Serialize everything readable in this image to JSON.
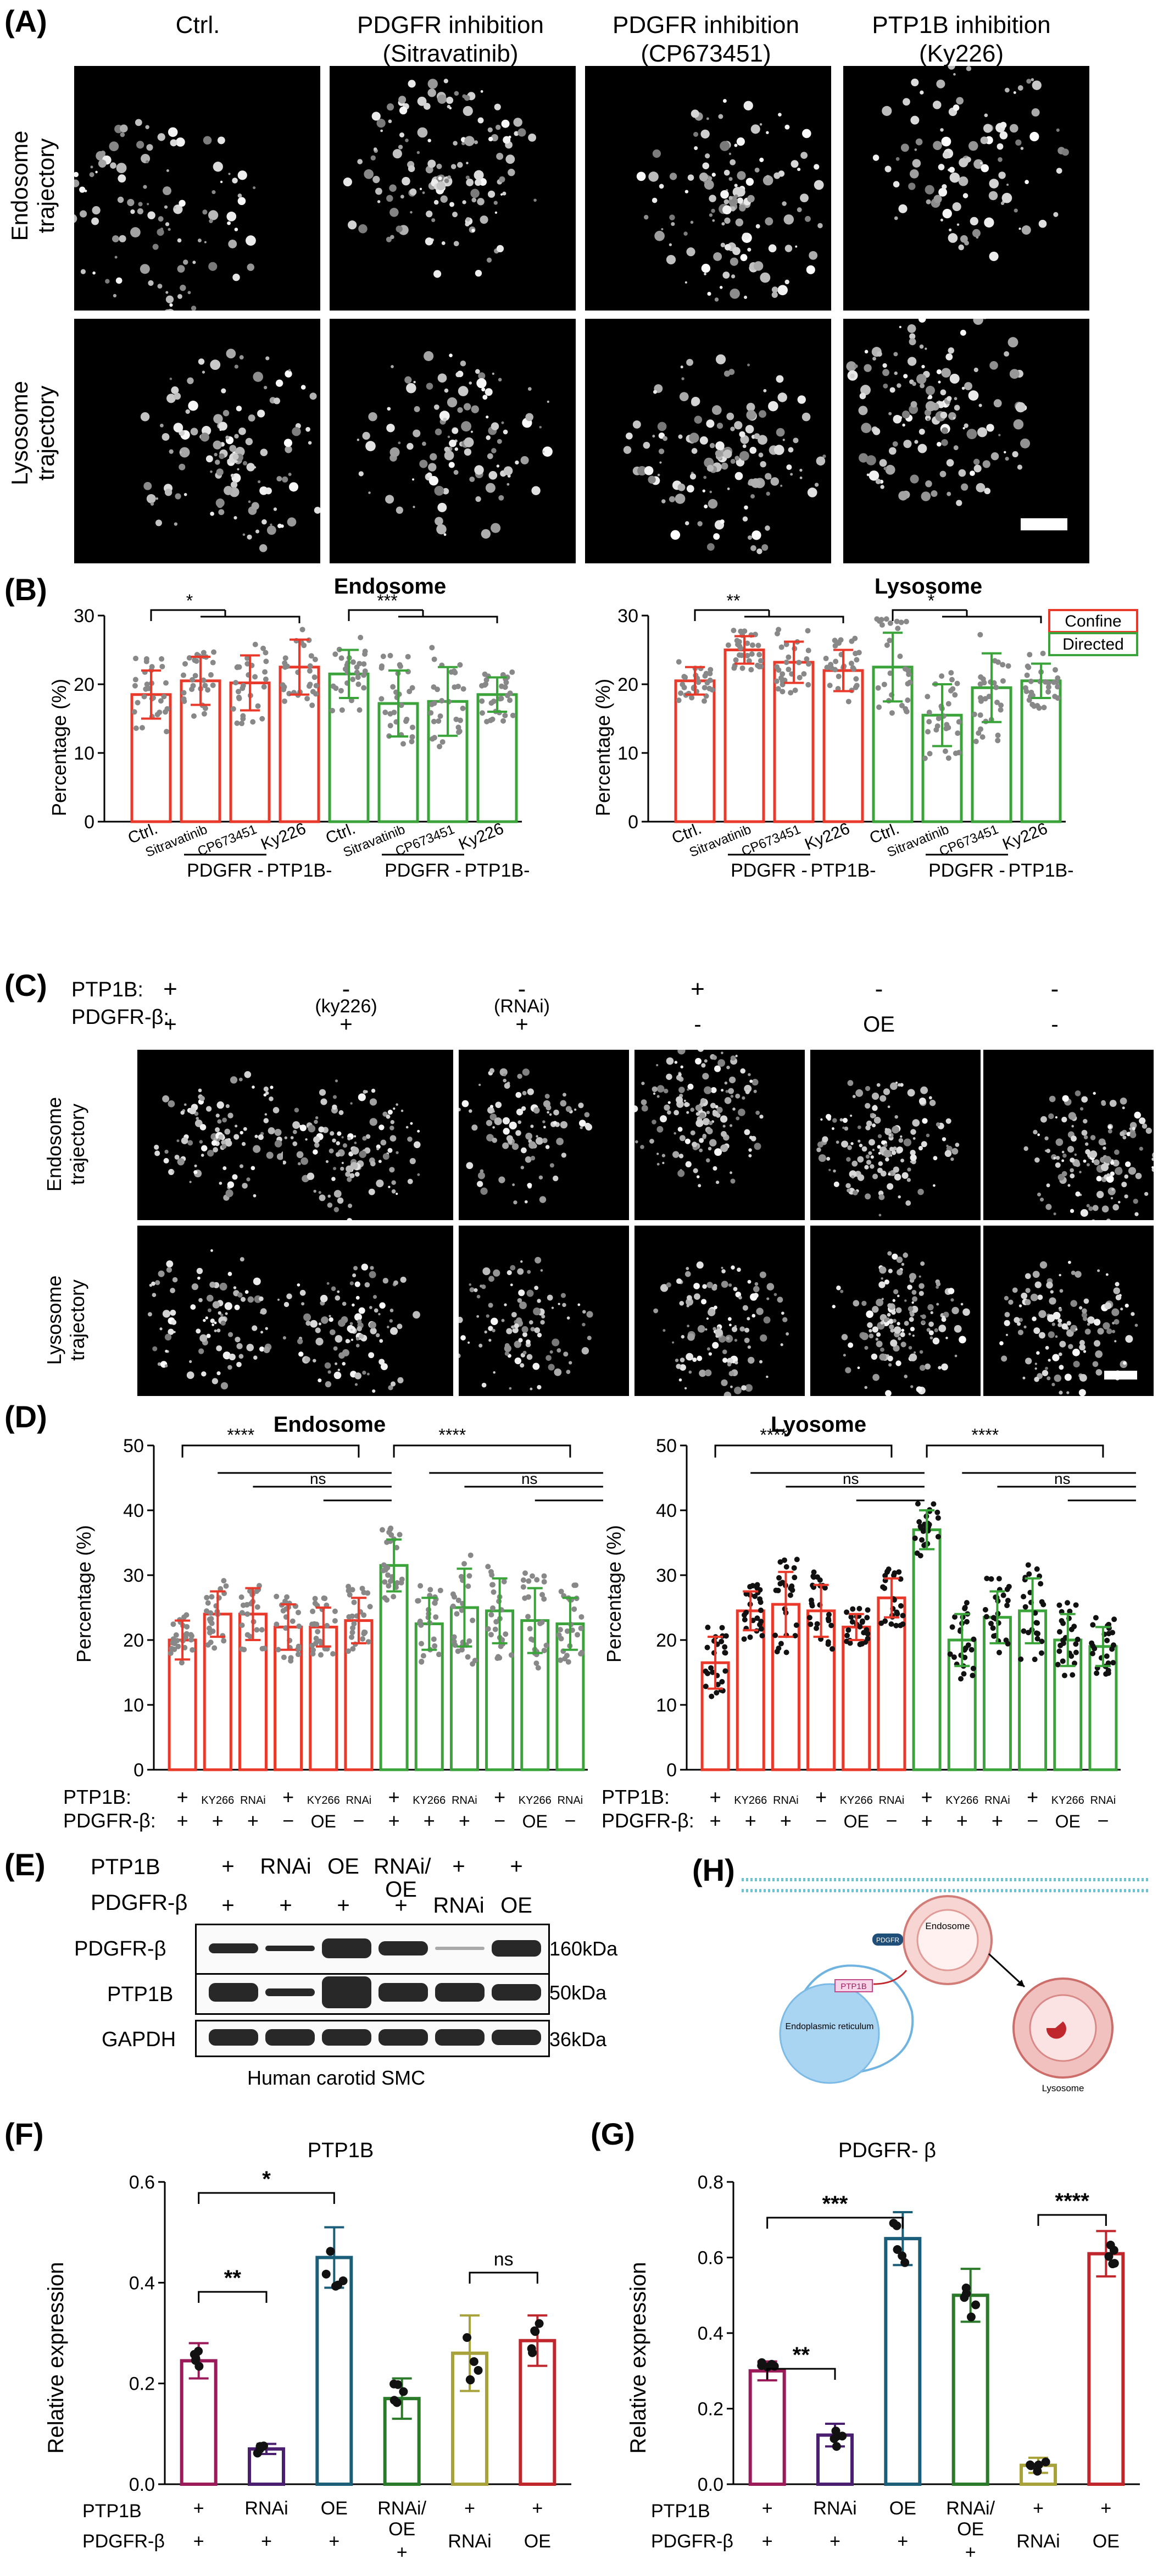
{
  "panels": {
    "A": "(A)",
    "B": "(B)",
    "C": "(C)",
    "D": "(D)",
    "E": "(E)",
    "F": "(F)",
    "G": "(G)",
    "H": "(H)"
  },
  "panelA": {
    "columns": [
      {
        "line1": "Ctrl.",
        "line2": ""
      },
      {
        "line1": "PDGFR inhibition",
        "line2": "(Sitravatinib)"
      },
      {
        "line1": "PDGFR inhibition",
        "line2": "(CP673451)"
      },
      {
        "line1": "PTP1B inhibition",
        "line2": "(Ky226)"
      }
    ],
    "rows": [
      {
        "line1": "Endosome",
        "line2": "trajectory"
      },
      {
        "line1": "Lysosome",
        "line2": "trajectory"
      }
    ]
  },
  "panelB": {
    "charts": [
      {
        "title": "Endosome",
        "ylabel": "Percentage (%)",
        "yticks": [
          "0",
          "10",
          "20",
          "30"
        ],
        "xlabels": [
          "Ctrl.",
          "Sitravatinib",
          "CP673451",
          "Ky226",
          "Ctrl.",
          "Sitravatinib",
          "CP673451",
          "Ky226"
        ],
        "group_labels": [
          "PDGFR -",
          "PTP1B-",
          "PDGFR -",
          "PTP1B-"
        ],
        "sig": [
          "*",
          "***"
        ]
      },
      {
        "title": "Lysosome",
        "ylabel": "Percentage (%)",
        "yticks": [
          "0",
          "10",
          "20",
          "30"
        ],
        "xlabels": [
          "Ctrl.",
          "Sitravatinib",
          "CP673451",
          "Ky226",
          "Ctrl.",
          "Sitravatinib",
          "CP673451",
          "Ky226"
        ],
        "group_labels": [
          "PDGFR -",
          "PTP1B-",
          "PDGFR -",
          "PTP1B-"
        ],
        "sig": [
          "**",
          "*"
        ],
        "legend": [
          "Confine",
          "Directed"
        ]
      }
    ]
  },
  "panelC": {
    "ptp1b_label": "PTP1B:",
    "pdgfr_label": "PDGFR-β:",
    "ptp1b": [
      "+",
      "-",
      "-",
      "+",
      "-",
      "-"
    ],
    "ptp1b_note": [
      "",
      "(ky226)",
      "(RNAi)",
      "",
      "",
      ""
    ],
    "pdgfr": [
      "+",
      "+",
      "+",
      "-",
      "OE",
      "-"
    ],
    "rows": [
      {
        "line1": "Endosome",
        "line2": "trajectory"
      },
      {
        "line1": "Lysosome",
        "line2": "trajectory"
      }
    ]
  },
  "panelD": {
    "charts": [
      {
        "title": "Endosome",
        "ylabel": "Percentage (%)",
        "yticks": [
          "0",
          "10",
          "20",
          "30",
          "40",
          "50"
        ],
        "sig": [
          "****",
          "ns",
          "****",
          "ns"
        ]
      },
      {
        "title": "Lyosome",
        "ylabel": "Percentage (%)",
        "yticks": [
          "0",
          "10",
          "20",
          "30",
          "40",
          "50"
        ],
        "sig": [
          "****",
          "ns",
          "****",
          "ns"
        ]
      }
    ],
    "row1_label": "PTP1B:",
    "row2_label": "PDGFR-β:",
    "row1": [
      "+",
      "KY266",
      "RNAi",
      "+",
      "KY266",
      "RNAi",
      "+",
      "KY266",
      "RNAi",
      "+",
      "KY266",
      "RNAi"
    ],
    "row2": [
      "+",
      "+",
      "+",
      "−",
      "OE",
      "−",
      "+",
      "+",
      "+",
      "−",
      "OE",
      "−"
    ]
  },
  "panelE": {
    "header_row1": [
      "PTP1B",
      "+",
      "RNAi",
      "OE",
      "RNAi/\nOE",
      "+",
      "+"
    ],
    "header_row2": [
      "PDGFR-β",
      "+",
      "+",
      "+",
      "+",
      "RNAi",
      "OE"
    ],
    "bands": [
      {
        "name": "PDGFR-β",
        "size": "160kDa"
      },
      {
        "name": "PTP1B",
        "size": "50kDa"
      },
      {
        "name": "GAPDH",
        "size": "36kDa"
      }
    ],
    "caption": "Human carotid SMC"
  },
  "panelH": {
    "labels": [
      "Endosome",
      "Lysosome",
      "Endoplasmic reticulum",
      "PTP1B",
      "PDGFR"
    ]
  },
  "chart_data": [
    {
      "type": "bar",
      "id": "B-endosome",
      "title": "Endosome",
      "ylabel": "Percentage (%)",
      "ylim": [
        0,
        30
      ],
      "categories": [
        "Ctrl.",
        "Sitravatinib",
        "CP673451",
        "Ky226",
        "Ctrl.",
        "Sitravatinib",
        "CP673451",
        "Ky226"
      ],
      "series": [
        {
          "name": "Confine",
          "values": [
            18.5,
            20.5,
            20.2,
            22.5,
            null,
            null,
            null,
            null
          ],
          "err": [
            3.5,
            3.5,
            4,
            4,
            null,
            null,
            null,
            null
          ]
        },
        {
          "name": "Directed",
          "values": [
            null,
            null,
            null,
            null,
            21.5,
            17.2,
            17.5,
            18.5
          ],
          "err": [
            null,
            null,
            null,
            null,
            3.5,
            4.8,
            5,
            2.5
          ]
        }
      ]
    },
    {
      "type": "bar",
      "id": "B-lysosome",
      "title": "Lysosome",
      "ylabel": "Percentage (%)",
      "ylim": [
        0,
        30
      ],
      "categories": [
        "Ctrl.",
        "Sitravatinib",
        "CP673451",
        "Ky226",
        "Ctrl.",
        "Sitravatinib",
        "CP673451",
        "Ky226"
      ],
      "series": [
        {
          "name": "Confine",
          "values": [
            20.5,
            25,
            23.2,
            22,
            null,
            null,
            null,
            null
          ],
          "err": [
            2,
            2,
            3,
            3,
            null,
            null,
            null,
            null
          ]
        },
        {
          "name": "Directed",
          "values": [
            null,
            null,
            null,
            null,
            22.5,
            15.5,
            19.5,
            20.5
          ],
          "err": [
            null,
            null,
            null,
            null,
            5,
            4.5,
            5,
            2.5
          ]
        }
      ]
    },
    {
      "type": "bar",
      "id": "D-endosome",
      "title": "Endosome",
      "ylabel": "Percentage (%)",
      "ylim": [
        0,
        50
      ],
      "values": [
        20,
        24,
        24,
        22,
        22,
        23,
        31.5,
        22.5,
        25,
        24.5,
        23,
        22.5
      ],
      "err": [
        3,
        3.5,
        4,
        3.5,
        3,
        3.5,
        4,
        4,
        6,
        5,
        5,
        4
      ],
      "colors": [
        "red",
        "red",
        "red",
        "red",
        "red",
        "red",
        "green",
        "green",
        "green",
        "green",
        "green",
        "green"
      ]
    },
    {
      "type": "bar",
      "id": "D-lyosome",
      "title": "Lyosome",
      "ylabel": "Percentage (%)",
      "ylim": [
        0,
        50
      ],
      "values": [
        16.5,
        24.5,
        25.5,
        24.5,
        22,
        26.5,
        37,
        20,
        23.5,
        24.5,
        20,
        19
      ],
      "err": [
        4,
        3,
        5,
        4,
        2,
        3,
        3,
        4,
        4,
        5,
        4,
        3
      ],
      "colors": [
        "red",
        "red",
        "red",
        "red",
        "red",
        "red",
        "green",
        "green",
        "green",
        "green",
        "green",
        "green"
      ]
    },
    {
      "type": "bar",
      "id": "F",
      "title": "PTP1B",
      "ylabel": "Relative expression",
      "ylim": [
        0,
        0.6
      ],
      "categories": [
        "+/+",
        "RNAi/+",
        "OE/+",
        "RNAi/OE/+",
        "+/RNAi",
        "+/OE"
      ],
      "values": [
        0.245,
        0.07,
        0.45,
        0.17,
        0.26,
        0.285
      ],
      "err": [
        0.035,
        0.01,
        0.06,
        0.04,
        0.075,
        0.05
      ],
      "yticks": [
        "0.0",
        "0.2",
        "0.4",
        "0.6"
      ],
      "sig": [
        "**",
        "*",
        "ns"
      ],
      "row1_label": "PTP1B",
      "row2_label": "PDGFR-β",
      "row1": [
        "+",
        "RNAi",
        "OE",
        "RNAi/\nOE",
        "+",
        "+"
      ],
      "row2": [
        "+",
        "+",
        "+",
        "+",
        "RNAi",
        "OE"
      ]
    },
    {
      "type": "bar",
      "id": "G",
      "title": "PDGFR- β",
      "ylabel": "Relative expression",
      "ylim": [
        0,
        0.8
      ],
      "categories": [
        "+/+",
        "RNAi/+",
        "OE/+",
        "RNAi/OE/+",
        "+/RNAi",
        "+/OE"
      ],
      "values": [
        0.3,
        0.13,
        0.65,
        0.5,
        0.05,
        0.61
      ],
      "err": [
        0.025,
        0.03,
        0.07,
        0.07,
        0.02,
        0.06
      ],
      "yticks": [
        "0.0",
        "0.2",
        "0.4",
        "0.6",
        "0.8"
      ],
      "sig": [
        "**",
        "***",
        "****"
      ],
      "row1_label": "PTP1B",
      "row2_label": "PDGFR-β",
      "row1": [
        "+",
        "RNAi",
        "OE",
        "RNAi/\nOE",
        "+",
        "+"
      ],
      "row2": [
        "+",
        "+",
        "+",
        "+",
        "RNAi",
        "OE"
      ]
    }
  ]
}
